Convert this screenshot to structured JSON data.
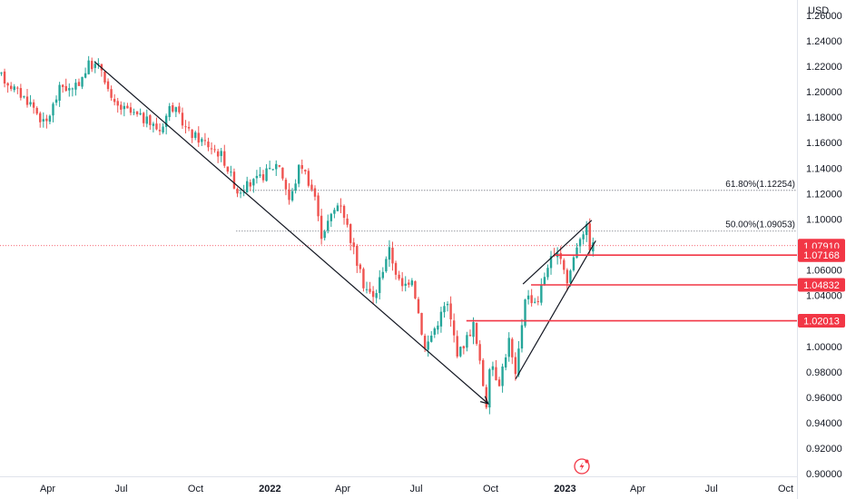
{
  "chart_data": {
    "type": "candlestick",
    "currency_label": "USD",
    "y_ticks": [
      "1.26000",
      "1.24000",
      "1.22000",
      "1.20000",
      "1.18000",
      "1.16000",
      "1.14000",
      "1.12000",
      "1.10000",
      "1.06000",
      "1.04000",
      "1.00000",
      "0.98000",
      "0.96000",
      "0.94000",
      "0.92000",
      "0.90000"
    ],
    "y_tick_values": [
      1.26,
      1.24,
      1.22,
      1.2,
      1.18,
      1.16,
      1.14,
      1.12,
      1.1,
      1.06,
      1.04,
      1.0,
      0.98,
      0.96,
      0.94,
      0.92,
      0.9
    ],
    "ylim": [
      0.898,
      1.272
    ],
    "x_ticks": [
      {
        "label": "Apr",
        "date": "2021-04-01",
        "bold": false
      },
      {
        "label": "Jul",
        "date": "2021-07-01",
        "bold": false
      },
      {
        "label": "Oct",
        "date": "2021-10-01",
        "bold": false
      },
      {
        "label": "2022",
        "date": "2022-01-01",
        "bold": true
      },
      {
        "label": "Apr",
        "date": "2022-04-01",
        "bold": false
      },
      {
        "label": "Jul",
        "date": "2022-07-01",
        "bold": false
      },
      {
        "label": "Oct",
        "date": "2022-10-01",
        "bold": false
      },
      {
        "label": "2023",
        "date": "2023-01-01",
        "bold": true
      },
      {
        "label": "Apr",
        "date": "2023-04-01",
        "bold": false
      },
      {
        "label": "Jul",
        "date": "2023-07-01",
        "bold": false
      },
      {
        "label": "Oct",
        "date": "2023-10-01",
        "bold": false
      }
    ],
    "xlim": [
      "2021-02-01",
      "2023-10-15"
    ],
    "price_path": [
      [
        "2021-02-01",
        1.214
      ],
      [
        "2021-02-25",
        1.2
      ],
      [
        "2021-03-15",
        1.19
      ],
      [
        "2021-03-31",
        1.173
      ],
      [
        "2021-04-20",
        1.205
      ],
      [
        "2021-05-05",
        1.2
      ],
      [
        "2021-05-25",
        1.222
      ],
      [
        "2021-06-10",
        1.218
      ],
      [
        "2021-06-22",
        1.19
      ],
      [
        "2021-07-10",
        1.185
      ],
      [
        "2021-08-01",
        1.178
      ],
      [
        "2021-08-20",
        1.17
      ],
      [
        "2021-09-03",
        1.19
      ],
      [
        "2021-09-25",
        1.168
      ],
      [
        "2021-10-15",
        1.16
      ],
      [
        "2021-11-05",
        1.15
      ],
      [
        "2021-11-24",
        1.122
      ],
      [
        "2021-12-20",
        1.131
      ],
      [
        "2022-01-14",
        1.145
      ],
      [
        "2022-01-28",
        1.113
      ],
      [
        "2022-02-10",
        1.145
      ],
      [
        "2022-02-28",
        1.118
      ],
      [
        "2022-03-07",
        1.087
      ],
      [
        "2022-03-31",
        1.115
      ],
      [
        "2022-04-28",
        1.05
      ],
      [
        "2022-05-12",
        1.037
      ],
      [
        "2022-05-30",
        1.077
      ],
      [
        "2022-06-15",
        1.045
      ],
      [
        "2022-06-28",
        1.055
      ],
      [
        "2022-07-14",
        0.998
      ],
      [
        "2022-07-28",
        1.017
      ],
      [
        "2022-08-10",
        1.035
      ],
      [
        "2022-08-24",
        0.993
      ],
      [
        "2022-09-12",
        1.017
      ],
      [
        "2022-09-28",
        0.955
      ],
      [
        "2022-10-04",
        0.99
      ],
      [
        "2022-10-13",
        0.97
      ],
      [
        "2022-10-26",
        1.005
      ],
      [
        "2022-11-03",
        0.975
      ],
      [
        "2022-11-15",
        1.04
      ],
      [
        "2022-11-30",
        1.035
      ],
      [
        "2022-12-14",
        1.067
      ],
      [
        "2022-12-30",
        1.071
      ],
      [
        "2023-01-06",
        1.05
      ],
      [
        "2023-01-20",
        1.085
      ],
      [
        "2023-01-26",
        1.091
      ],
      [
        "2023-02-01",
        1.093
      ],
      [
        "2023-02-03",
        1.079
      ]
    ],
    "trendlines": [
      {
        "from": [
          "2021-05-29",
          1.2235
        ],
        "to": [
          "2022-09-28",
          0.955
        ],
        "arrow": true
      },
      {
        "from": [
          "2022-11-01",
          0.9745
        ],
        "to": [
          "2023-02-08",
          1.083
        ]
      },
      {
        "from": [
          "2022-11-10",
          1.049
        ],
        "to": [
          "2023-02-03",
          1.099
        ]
      }
    ],
    "fibonacci": [
      {
        "label": "61.80%(1.12254)",
        "value": 1.12254,
        "from": "2021-11-20"
      },
      {
        "label": "50.00%(1.09053)",
        "value": 1.09053,
        "from": "2021-11-20"
      }
    ],
    "current_price": {
      "label": "1.07910",
      "value": 1.0791
    },
    "levels": [
      {
        "label": "1.07168",
        "value": 1.07168,
        "from": "2022-12-20"
      },
      {
        "label": "1.04832",
        "value": 1.04832,
        "from": "2022-11-20"
      },
      {
        "label": "1.02013",
        "value": 1.02013,
        "from": "2022-09-01"
      }
    ],
    "colors": {
      "up": "#26a69a",
      "down": "#ef5350",
      "level": "#f23645",
      "price_badge": "#f23645",
      "trend": "#131722",
      "fib": "#787b86"
    }
  }
}
